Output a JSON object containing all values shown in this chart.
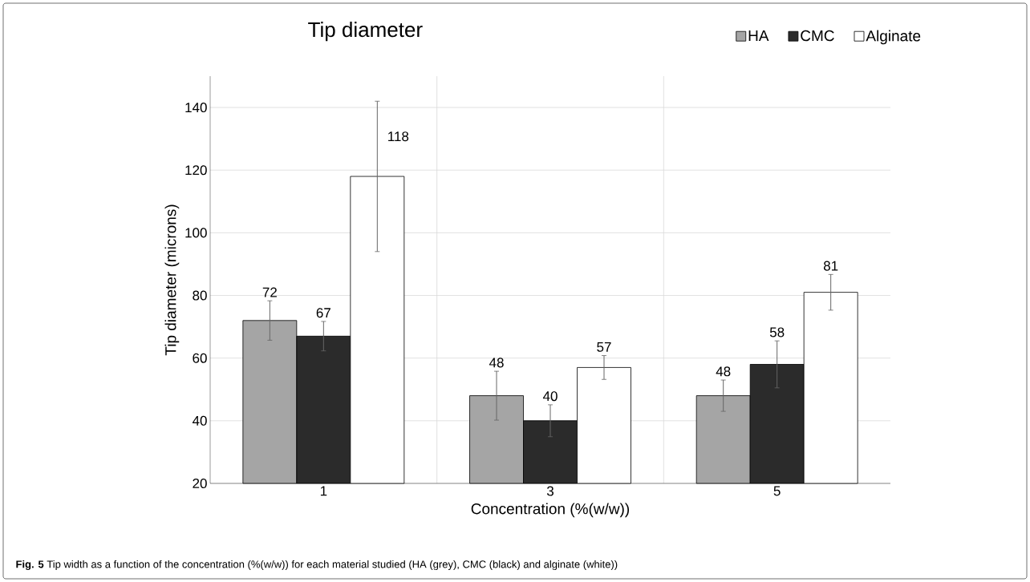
{
  "chart_data": {
    "type": "bar",
    "title": "Tip diameter",
    "xlabel": "Concentration (%(w/w))",
    "ylabel": "Tip diameter (microns)",
    "categories": [
      "1",
      "3",
      "5"
    ],
    "series": [
      {
        "name": "HA",
        "color": "#a5a5a5",
        "values": [
          72,
          48,
          48
        ],
        "errors": [
          6.3,
          7.8,
          5
        ]
      },
      {
        "name": "CMC",
        "color": "#2b2b2b",
        "values": [
          67,
          40,
          58
        ],
        "errors": [
          4.7,
          5.1,
          7.5
        ]
      },
      {
        "name": "Alginate",
        "color": "#ffffff",
        "values": [
          118,
          57,
          81
        ],
        "errors": [
          24,
          3.8,
          5.7
        ]
      }
    ],
    "ylim": [
      20,
      150
    ],
    "yticks": [
      20,
      40,
      60,
      80,
      100,
      120,
      140
    ],
    "grid": true,
    "legend": "top right",
    "data_labels": true,
    "annotations": [
      "**Fig. 5** Tip width as a function of the concentration (%(w/w)) for each material studied (HA (grey), CMC (black) and alginate (white))"
    ]
  }
}
